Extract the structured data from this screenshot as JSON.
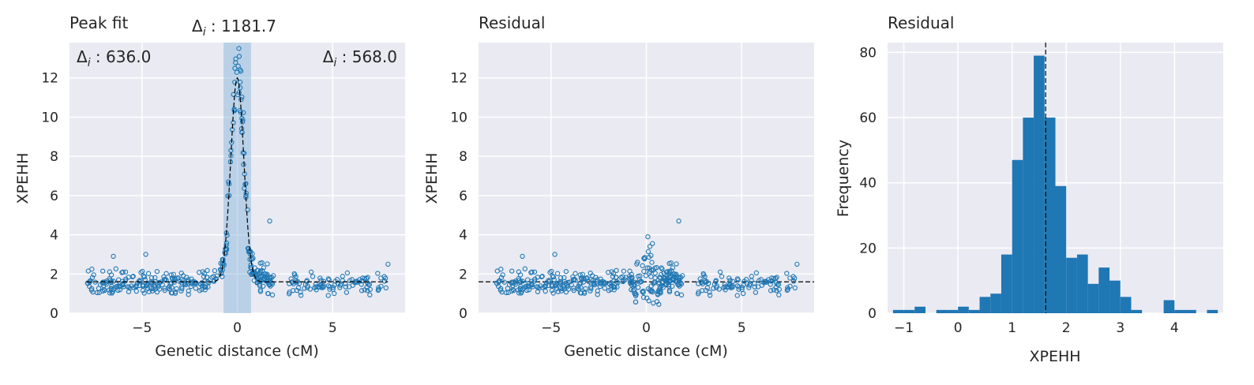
{
  "chart_data": [
    {
      "type": "scatter",
      "title": "Peak fit",
      "xlabel": "Genetic distance (cM)",
      "ylabel": "XPEHH",
      "xlim": [
        -8.8,
        8.8
      ],
      "ylim": [
        0,
        13.8
      ],
      "xticks": [
        -5,
        0,
        5
      ],
      "yticks": [
        0,
        2,
        4,
        6,
        8,
        10,
        12
      ],
      "xtick_labels": [
        "−5",
        "0",
        "5"
      ],
      "ytick_labels": [
        "0",
        "2",
        "4",
        "6",
        "8",
        "10",
        "12"
      ],
      "grid": true,
      "annotations": {
        "left_prefix": "Δ",
        "left_sub": "i",
        "left_value": " : 636.0",
        "center_prefix": "Δ",
        "center_sub": "i",
        "center_value": " : 1181.7",
        "right_prefix": "Δ",
        "right_sub": "i",
        "right_value": " : 568.0"
      },
      "shaded_region": [
        -0.72,
        0.72
      ],
      "fit_baseline": 1.6,
      "fit_peak": {
        "center": 0.0,
        "height": 10.4,
        "width": 0.34
      },
      "n_points": 420,
      "point_color": "#1f77b4"
    },
    {
      "type": "scatter",
      "title": "Residual",
      "xlabel": "Genetic distance (cM)",
      "ylabel": "XPEHH",
      "xlim": [
        -8.8,
        8.8
      ],
      "ylim": [
        0,
        13.8
      ],
      "xticks": [
        -5,
        0,
        5
      ],
      "yticks": [
        0,
        2,
        4,
        6,
        8,
        10,
        12
      ],
      "xtick_labels": [
        "−5",
        "0",
        "5"
      ],
      "ytick_labels": [
        "0",
        "2",
        "4",
        "6",
        "8",
        "10",
        "12"
      ],
      "grid": true,
      "baseline": 1.6,
      "point_color": "#1f77b4"
    },
    {
      "type": "bar",
      "title": "Residual",
      "xlabel": "XPEHH",
      "ylabel": "Frequency",
      "xlim": [
        -1.3,
        4.9
      ],
      "ylim": [
        0,
        83
      ],
      "xticks": [
        -1,
        0,
        1,
        2,
        3,
        4
      ],
      "yticks": [
        0,
        20,
        40,
        60,
        80
      ],
      "xtick_labels": [
        "−1",
        "0",
        "1",
        "2",
        "3",
        "4"
      ],
      "ytick_labels": [
        "0",
        "20",
        "40",
        "60",
        "80"
      ],
      "grid": true,
      "bin_start": -1.2,
      "bin_width": 0.2,
      "values": [
        1,
        1,
        2,
        0,
        1,
        1,
        2,
        1,
        5,
        6,
        18,
        47,
        60,
        79,
        60,
        39,
        17,
        18,
        9,
        14,
        10,
        5,
        1,
        0,
        0,
        4,
        1,
        1,
        0,
        1
      ],
      "mean_line": 1.62,
      "bar_color": "#1f77b4"
    }
  ]
}
